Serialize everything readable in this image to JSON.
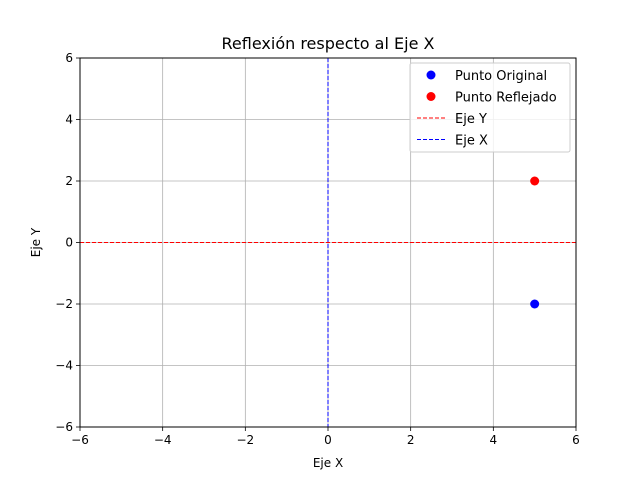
{
  "chart_data": {
    "type": "scatter",
    "title": "Reflexión respecto al Eje X",
    "xlabel": "Eje X",
    "ylabel": "Eje Y",
    "xlim": [
      -6,
      6
    ],
    "ylim": [
      -6,
      6
    ],
    "xticks": [
      -6,
      -4,
      -2,
      0,
      2,
      4,
      6
    ],
    "yticks": [
      -6,
      -4,
      -2,
      0,
      2,
      4,
      6
    ],
    "grid": true,
    "legend_position": "top-right",
    "series": [
      {
        "name": "Punto Original",
        "kind": "point",
        "x": 5,
        "y": -2,
        "color": "#0000ff"
      },
      {
        "name": "Punto Reflejado",
        "kind": "point",
        "x": 5,
        "y": 2,
        "color": "#ff0000"
      },
      {
        "name": "Eje Y",
        "kind": "hline",
        "y": 0,
        "color": "#ff0000",
        "style": "dashed"
      },
      {
        "name": "Eje X",
        "kind": "vline",
        "x": 0,
        "color": "#0000ff",
        "style": "dashed"
      }
    ]
  }
}
